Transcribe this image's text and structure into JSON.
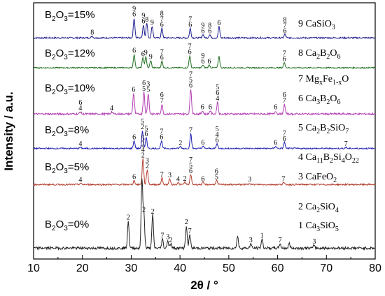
{
  "chart_data": {
    "type": "line",
    "title": "",
    "xlabel": "2θ / °",
    "ylabel": "Intensity / a.u.",
    "xlim": [
      10,
      80
    ],
    "xticks": [
      10,
      20,
      30,
      40,
      50,
      60,
      70,
      80
    ],
    "yticks_shown": false,
    "grid": false,
    "legend_placement": "right",
    "legend": [
      {
        "id": "9",
        "formula": [
          [
            "CaSiO",
            ""
          ],
          [
            "3",
            "sub"
          ]
        ]
      },
      {
        "id": "8",
        "formula": [
          [
            "Ca",
            ""
          ],
          [
            "2",
            "sub"
          ],
          [
            "B",
            ""
          ],
          [
            "2",
            "sub"
          ],
          [
            "O",
            ""
          ],
          [
            "6",
            "sub"
          ]
        ]
      },
      {
        "id": "7",
        "formula": [
          [
            "Mg",
            ""
          ],
          [
            "x",
            "sub"
          ],
          [
            "Fe",
            ""
          ],
          [
            "1-x",
            "sub"
          ],
          [
            "O",
            ""
          ]
        ]
      },
      {
        "id": "6",
        "formula": [
          [
            "Ca",
            ""
          ],
          [
            "3",
            "sub"
          ],
          [
            "B",
            ""
          ],
          [
            "2",
            "sub"
          ],
          [
            "O",
            ""
          ],
          [
            "6",
            "sub"
          ]
        ]
      },
      {
        "id": "5",
        "formula": [
          [
            "Ca",
            ""
          ],
          [
            "2",
            "sub"
          ],
          [
            "B",
            ""
          ],
          [
            "2",
            "sub"
          ],
          [
            "SiO",
            ""
          ],
          [
            "7",
            "sub"
          ]
        ]
      },
      {
        "id": "4",
        "formula": [
          [
            "Ca",
            ""
          ],
          [
            "11",
            "sub"
          ],
          [
            "B",
            ""
          ],
          [
            "2",
            "sub"
          ],
          [
            "Si",
            ""
          ],
          [
            "4",
            "sub"
          ],
          [
            "O",
            ""
          ],
          [
            "22",
            "sub"
          ]
        ]
      },
      {
        "id": "3",
        "formula": [
          [
            "CaFeO",
            ""
          ],
          [
            "2",
            "sub"
          ]
        ]
      },
      {
        "id": "2",
        "formula": [
          [
            "Ca",
            ""
          ],
          [
            "2",
            "sub"
          ],
          [
            "SiO",
            ""
          ],
          [
            "4",
            "sub"
          ]
        ]
      },
      {
        "id": "1",
        "formula": [
          [
            "Ca",
            ""
          ],
          [
            "3",
            "sub"
          ],
          [
            "SiO",
            ""
          ],
          [
            "5",
            "sub"
          ]
        ]
      }
    ],
    "series": [
      {
        "name": "B2O3=15%",
        "label_parts": [
          [
            "B",
            ""
          ],
          [
            "2",
            "sub"
          ],
          [
            "O",
            ""
          ],
          [
            "3",
            "sub"
          ],
          [
            "=15%",
            ""
          ]
        ],
        "color": "#1f1f8f",
        "baseline": 0.93,
        "peaks": [
          {
            "x": 22.0,
            "h": 0.04,
            "labels": [
              "8"
            ]
          },
          {
            "x": 30.6,
            "h": 0.46,
            "labels": [
              "9",
              "6"
            ]
          },
          {
            "x": 32.5,
            "h": 0.3,
            "labels": [
              "9",
              "6"
            ]
          },
          {
            "x": 33.2,
            "h": 0.34,
            "labels": [
              "8"
            ]
          },
          {
            "x": 34.3,
            "h": 0.27,
            "labels": [
              "9"
            ]
          },
          {
            "x": 36.3,
            "h": 0.22,
            "labels": [
              "8",
              "7",
              "6"
            ]
          },
          {
            "x": 42.1,
            "h": 0.22,
            "labels": [
              "7",
              "6"
            ]
          },
          {
            "x": 44.7,
            "h": 0.08,
            "labels": [
              "9",
              "6"
            ]
          },
          {
            "x": 46.1,
            "h": 0.08,
            "labels": [
              "8",
              "6"
            ]
          },
          {
            "x": 48.0,
            "h": 0.26,
            "labels": [
              "6"
            ]
          },
          {
            "x": 61.5,
            "h": 0.08,
            "labels": [
              "8",
              "7",
              "6"
            ]
          }
        ]
      },
      {
        "name": "B2O3=12%",
        "label_parts": [
          [
            "B",
            ""
          ],
          [
            "2",
            "sub"
          ],
          [
            "O",
            ""
          ],
          [
            "3",
            "sub"
          ],
          [
            "=12%",
            ""
          ]
        ],
        "color": "#1f6f1f",
        "baseline": 0.93,
        "peaks": [
          {
            "x": 30.6,
            "h": 0.4,
            "labels": [
              "6"
            ]
          },
          {
            "x": 32.4,
            "h": 0.3,
            "labels": [
              "6"
            ]
          },
          {
            "x": 33.0,
            "h": 0.34,
            "labels": [
              "9"
            ]
          },
          {
            "x": 34.0,
            "h": 0.22,
            "labels": [
              "9"
            ]
          },
          {
            "x": 36.3,
            "h": 0.2,
            "labels": [
              "7",
              "6"
            ]
          },
          {
            "x": 42.0,
            "h": 0.36,
            "labels": [
              "7",
              "6"
            ]
          },
          {
            "x": 44.7,
            "h": 0.08,
            "labels": [
              "9",
              "6"
            ]
          },
          {
            "x": 46.0,
            "h": 0.08,
            "labels": [
              "6"
            ]
          },
          {
            "x": 48.0,
            "h": 0.34,
            "labels": []
          },
          {
            "x": 61.4,
            "h": 0.16,
            "labels": [
              "7",
              "6"
            ]
          }
        ]
      },
      {
        "name": "B2O3=10%",
        "label_parts": [
          [
            "B",
            ""
          ],
          [
            "2",
            "sub"
          ],
          [
            "O",
            ""
          ],
          [
            "3",
            "sub"
          ],
          [
            "=10%",
            ""
          ]
        ],
        "color": "#b33fb3",
        "baseline": 0.93,
        "peaks": [
          {
            "x": 19.6,
            "h": 0.04,
            "labels": [
              "6",
              "4"
            ]
          },
          {
            "x": 26.0,
            "h": 0.04,
            "labels": [
              "4"
            ]
          },
          {
            "x": 30.5,
            "h": 0.38,
            "labels": [
              "6"
            ]
          },
          {
            "x": 32.6,
            "h": 0.4,
            "labels": [
              "6",
              "5"
            ]
          },
          {
            "x": 33.5,
            "h": 0.38,
            "labels": [
              "3",
              "5"
            ]
          },
          {
            "x": 36.3,
            "h": 0.18,
            "labels": [
              "6",
              "7"
            ]
          },
          {
            "x": 42.2,
            "h": 0.46,
            "labels": [
              "7",
              "5",
              "6"
            ]
          },
          {
            "x": 44.6,
            "h": 0.06,
            "labels": [
              "6"
            ]
          },
          {
            "x": 46.2,
            "h": 0.06,
            "labels": [
              "6"
            ]
          },
          {
            "x": 47.7,
            "h": 0.22,
            "labels": [
              "5",
              "6",
              "4"
            ]
          },
          {
            "x": 59.6,
            "h": 0.06,
            "labels": [
              "6"
            ]
          },
          {
            "x": 61.4,
            "h": 0.18,
            "labels": [
              "6",
              "7"
            ]
          }
        ]
      },
      {
        "name": "B2O3=8%",
        "label_parts": [
          [
            "B",
            ""
          ],
          [
            "2",
            "sub"
          ],
          [
            "O",
            ""
          ],
          [
            "3",
            "sub"
          ],
          [
            "=8%",
            ""
          ]
        ],
        "color": "#1f1fb3",
        "baseline": 0.93,
        "peaks": [
          {
            "x": 19.6,
            "h": 0.03,
            "labels": [
              "4"
            ]
          },
          {
            "x": 30.6,
            "h": 0.2,
            "labels": [
              "6"
            ]
          },
          {
            "x": 32.3,
            "h": 0.46,
            "labels": [
              "5",
              "2"
            ]
          },
          {
            "x": 33.1,
            "h": 0.28,
            "labels": [
              "5",
              "6"
            ]
          },
          {
            "x": 36.2,
            "h": 0.2,
            "labels": [
              "7",
              "6"
            ]
          },
          {
            "x": 40.1,
            "h": 0.05,
            "labels": [
              "2"
            ]
          },
          {
            "x": 42.2,
            "h": 0.38,
            "labels": [
              "7"
            ]
          },
          {
            "x": 44.7,
            "h": 0.06,
            "labels": [
              "6"
            ]
          },
          {
            "x": 47.6,
            "h": 0.12,
            "labels": [
              "5",
              "4",
              "6"
            ]
          },
          {
            "x": 59.6,
            "h": 0.06,
            "labels": [
              "6"
            ]
          },
          {
            "x": 61.4,
            "h": 0.16,
            "labels": [
              "7",
              "6"
            ]
          },
          {
            "x": 74.0,
            "h": 0.03,
            "labels": [
              "7"
            ]
          }
        ]
      },
      {
        "name": "B2O3=5%",
        "label_parts": [
          [
            "B",
            ""
          ],
          [
            "2",
            "sub"
          ],
          [
            "O",
            ""
          ],
          [
            "3",
            "sub"
          ],
          [
            "=5%",
            ""
          ]
        ],
        "color": "#b33f2f",
        "baseline": 0.93,
        "peaks": [
          {
            "x": 19.6,
            "h": 0.03,
            "labels": [
              "4"
            ]
          },
          {
            "x": 30.6,
            "h": 0.1,
            "labels": [
              "6"
            ]
          },
          {
            "x": 32.4,
            "h": 0.62,
            "labels": [
              "5",
              "2",
              "4",
              "2"
            ]
          },
          {
            "x": 33.3,
            "h": 0.36,
            "labels": [
              "3",
              "2"
            ]
          },
          {
            "x": 36.3,
            "h": 0.16,
            "labels": [
              "7"
            ]
          },
          {
            "x": 37.9,
            "h": 0.14,
            "labels": [
              "3"
            ]
          },
          {
            "x": 39.6,
            "h": 0.05,
            "labels": [
              "4"
            ]
          },
          {
            "x": 41.0,
            "h": 0.06,
            "labels": [
              "2"
            ]
          },
          {
            "x": 42.2,
            "h": 0.24,
            "labels": [
              "7",
              "5",
              "6"
            ]
          },
          {
            "x": 44.7,
            "h": 0.05,
            "labels": [
              "6"
            ]
          },
          {
            "x": 47.5,
            "h": 0.1,
            "labels": [
              "6",
              "5"
            ]
          },
          {
            "x": 54.3,
            "h": 0.04,
            "labels": [
              "3"
            ]
          },
          {
            "x": 61.2,
            "h": 0.05,
            "labels": [
              "7"
            ]
          }
        ]
      },
      {
        "name": "B2O3=0%",
        "label_parts": [
          [
            "B",
            ""
          ],
          [
            "2",
            "sub"
          ],
          [
            "O",
            ""
          ],
          [
            "3",
            "sub"
          ],
          [
            "=0%",
            ""
          ]
        ],
        "color": "#222222",
        "baseline": 0.93,
        "peaks": [
          {
            "x": 29.4,
            "h": 0.36,
            "labels": [
              "2"
            ]
          },
          {
            "x": 32.2,
            "h": 0.9,
            "labels": []
          },
          {
            "x": 32.6,
            "h": 0.46,
            "labels": [
              "2"
            ]
          },
          {
            "x": 34.4,
            "h": 0.44,
            "labels": [
              "2"
            ]
          },
          {
            "x": 36.4,
            "h": 0.12,
            "labels": [
              "7"
            ]
          },
          {
            "x": 37.5,
            "h": 0.1,
            "labels": [
              "3"
            ]
          },
          {
            "x": 38.1,
            "h": 0.06,
            "labels": [
              "2"
            ]
          },
          {
            "x": 41.3,
            "h": 0.3,
            "labels": [
              "2"
            ]
          },
          {
            "x": 42.0,
            "h": 0.18,
            "labels": [
              "7"
            ]
          },
          {
            "x": 51.8,
            "h": 0.16,
            "labels": []
          },
          {
            "x": 54.5,
            "h": 0.06,
            "labels": [
              "3"
            ]
          },
          {
            "x": 56.8,
            "h": 0.12,
            "labels": [
              "1"
            ]
          },
          {
            "x": 60.5,
            "h": 0.06,
            "labels": [
              "7"
            ]
          },
          {
            "x": 62.4,
            "h": 0.06,
            "labels": []
          },
          {
            "x": 67.5,
            "h": 0.04,
            "labels": [
              "3"
            ]
          }
        ]
      }
    ]
  }
}
